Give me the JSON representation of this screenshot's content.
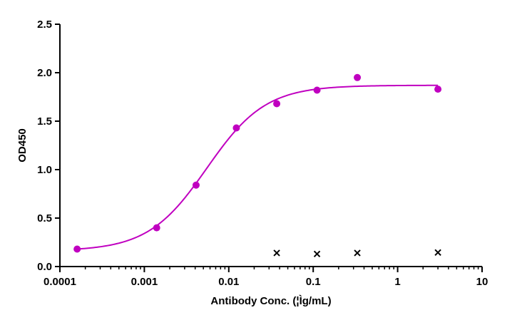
{
  "chart_data": {
    "type": "scatter",
    "title": "",
    "xlabel": "Antibody Conc. (¦Ìg/mL)",
    "ylabel": "OD450",
    "xscale": "log",
    "xlim": [
      0.0001,
      10
    ],
    "ylim": [
      0,
      2.5
    ],
    "x_ticks": [
      0.0001,
      0.001,
      0.01,
      0.1,
      1,
      10
    ],
    "x_tick_labels": [
      "0.0001",
      "0.001",
      "0.01",
      "0.1",
      "1",
      "10"
    ],
    "y_ticks": [
      0.0,
      0.5,
      1.0,
      1.5,
      2.0,
      2.5
    ],
    "y_tick_labels": [
      "0.0",
      "0.5",
      "1.0",
      "1.5",
      "2.0",
      "2.5"
    ],
    "grid": false,
    "legend": "none",
    "series": [
      {
        "marker": "circle",
        "color": "#C000C0",
        "x": [
          0.00016,
          0.0014,
          0.0041,
          0.0123,
          0.037,
          0.111,
          0.333,
          3.0
        ],
        "y": [
          0.18,
          0.4,
          0.84,
          1.43,
          1.68,
          1.82,
          1.95,
          1.83
        ],
        "fit": {
          "type": "4PL",
          "bottom": 0.16,
          "top": 1.87,
          "ec50": 0.0055,
          "hill": 1.25,
          "color": "#C000C0"
        }
      },
      {
        "marker": "x",
        "color": "#000000",
        "x": [
          0.037,
          0.111,
          0.333,
          3.0
        ],
        "y": [
          0.14,
          0.13,
          0.14,
          0.145
        ]
      }
    ]
  }
}
